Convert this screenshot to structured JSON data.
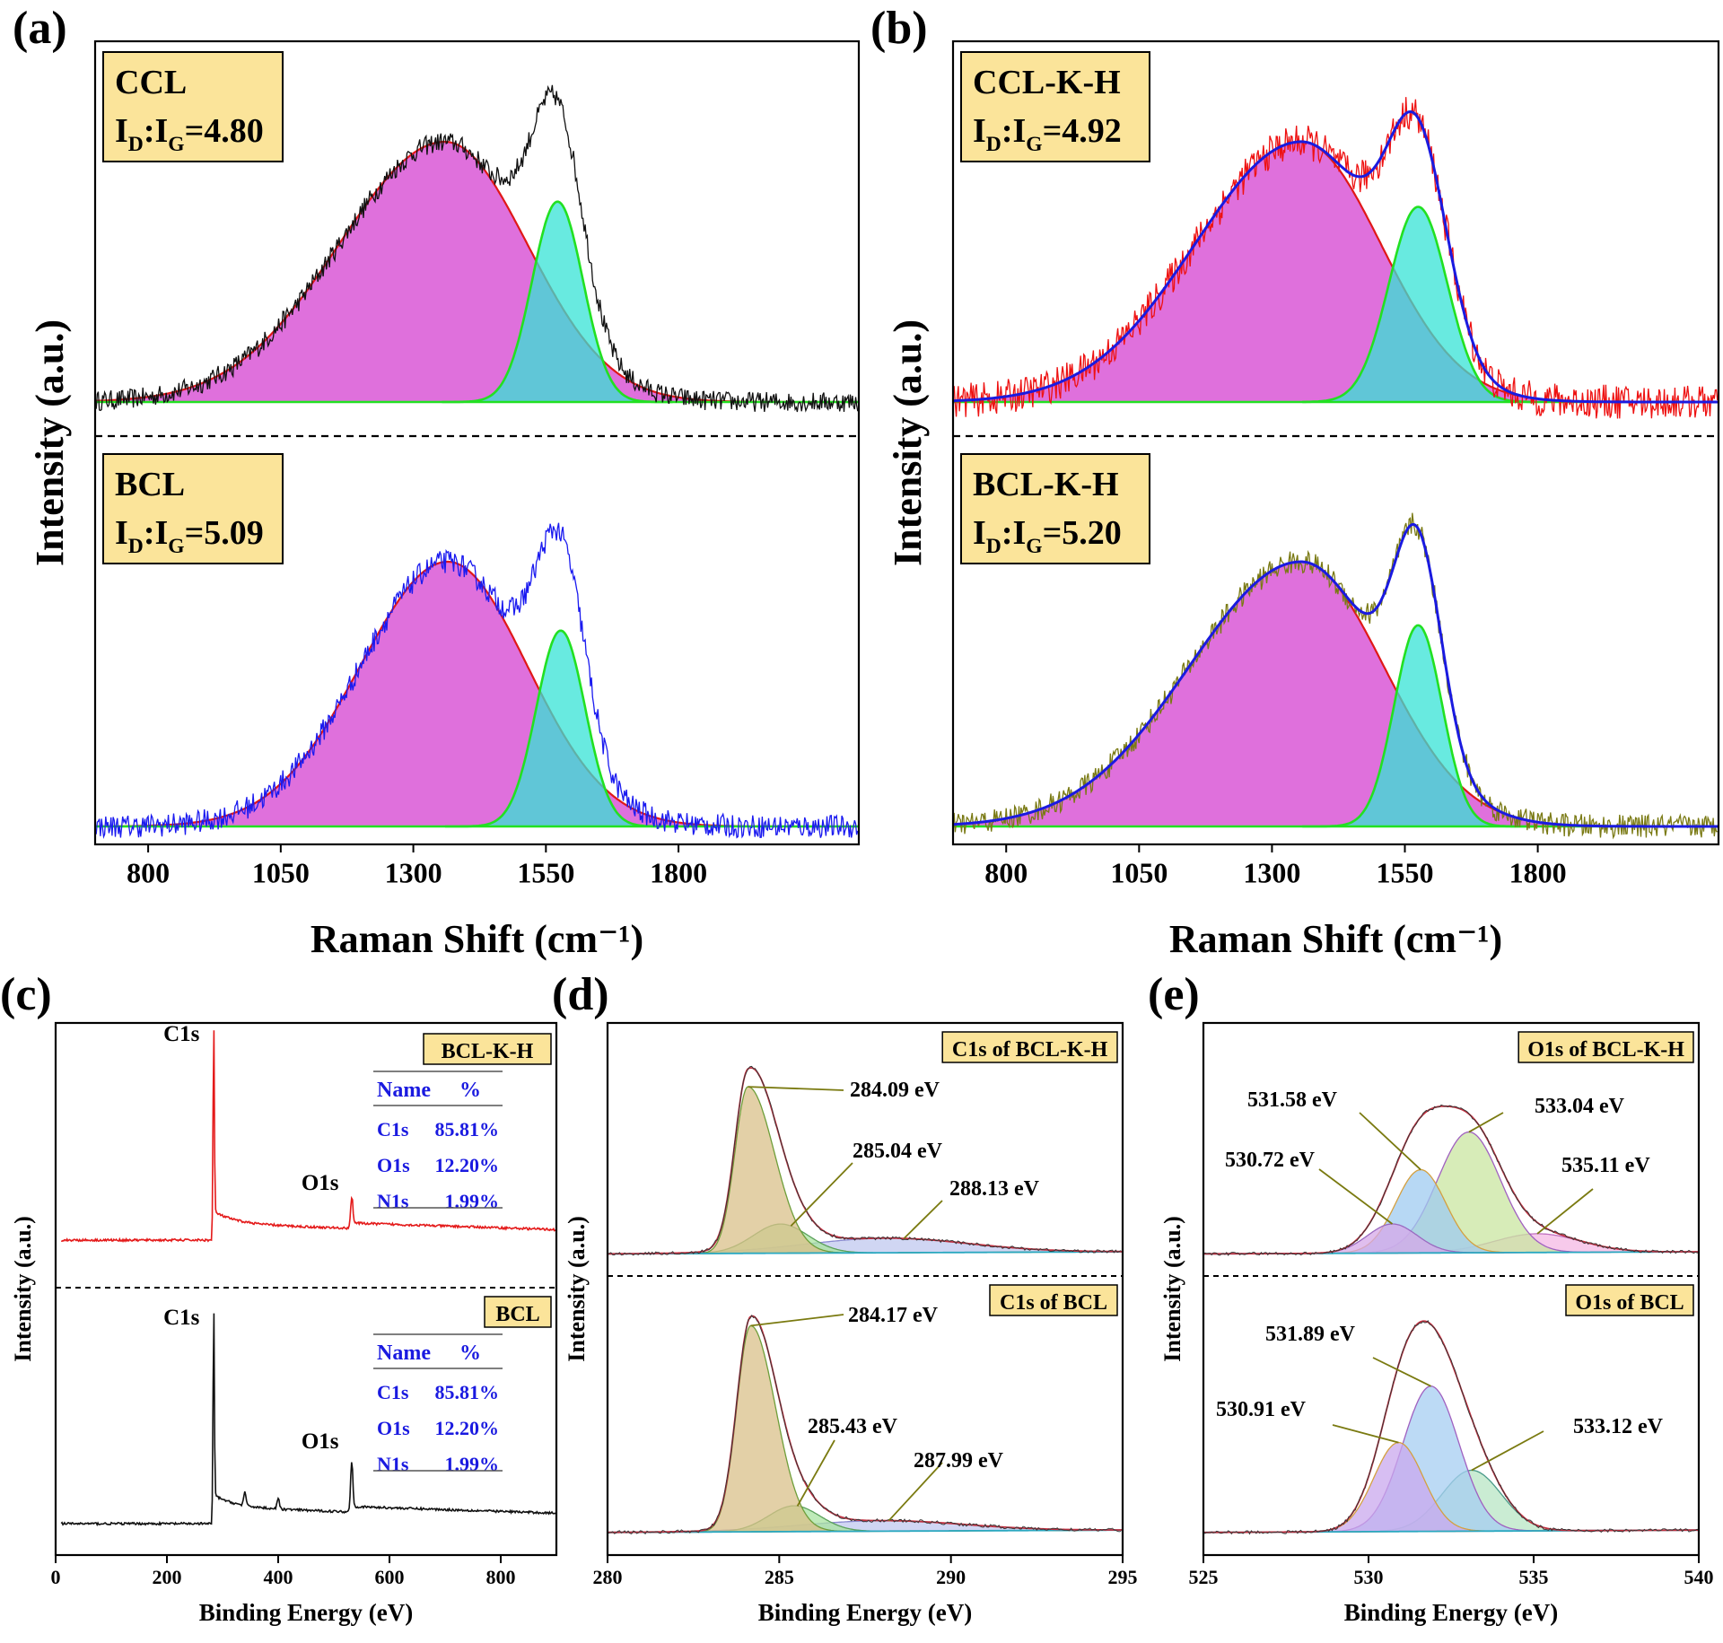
{
  "colors": {
    "d_fill": "#d957d6",
    "d_line": "#e01818",
    "g_fill": "#35e3d6",
    "g_line": "#22e022",
    "ccl": "#111111",
    "bcl": "#1a1af0",
    "cclkh": "#ee1111",
    "bclkh": "#7a7a14",
    "fit": "#1a1ae0",
    "badge_fill": "#fbe49a",
    "table_text": "#1a1ae0",
    "survey_bclkh": "#e41a1a",
    "survey_bcl": "#111111"
  },
  "chart_data": [
    {
      "type": "line",
      "panel_label": "(a)",
      "xlabel": "Raman Shift (cm⁻¹)",
      "ylabel": "Intensity (a.u.)",
      "xlim": [
        700,
        2140
      ],
      "xticks": [
        800,
        1050,
        1300,
        1550,
        1800
      ],
      "stacks": [
        {
          "name": "CCL",
          "ratio_label": "I_D:I_G=4.80",
          "line_color": "#111111",
          "fit": false,
          "D": {
            "center": 1360,
            "amp": 1.0,
            "sigma_left": 200,
            "sigma_right": 155
          },
          "G": {
            "center": 1572,
            "amp": 0.77,
            "sigma": 48
          },
          "noise": 0.035
        },
        {
          "name": "BCL",
          "ratio_label": "I_D:I_G=5.09",
          "line_color": "#1a1af0",
          "fit": false,
          "D": {
            "center": 1365,
            "amp": 1.0,
            "sigma_left": 165,
            "sigma_right": 150
          },
          "G": {
            "center": 1578,
            "amp": 0.74,
            "sigma": 46
          },
          "noise": 0.04
        }
      ]
    },
    {
      "type": "line",
      "panel_label": "(b)",
      "xlabel": "Raman Shift (cm⁻¹)",
      "ylabel": "Intensity (a.u.)",
      "xlim": [
        700,
        2140
      ],
      "xticks": [
        800,
        1050,
        1300,
        1550,
        1800
      ],
      "stacks": [
        {
          "name": "CCL-K-H",
          "ratio_label": "I_D:I_G=4.92",
          "line_color": "#ee1111",
          "fit": true,
          "D": {
            "center": 1355,
            "amp": 1.0,
            "sigma_left": 200,
            "sigma_right": 150
          },
          "G": {
            "center": 1575,
            "amp": 0.75,
            "sigma": 55
          },
          "noise": 0.06
        },
        {
          "name": "BCL-K-H",
          "ratio_label": "I_D:I_G=5.20",
          "line_color": "#7a7a14",
          "fit": true,
          "D": {
            "center": 1355,
            "amp": 1.0,
            "sigma_left": 210,
            "sigma_right": 155
          },
          "G": {
            "center": 1575,
            "amp": 0.76,
            "sigma": 45
          },
          "noise": 0.04
        }
      ]
    },
    {
      "type": "line",
      "panel_label": "(c)",
      "xlabel": "Binding Energy (eV)",
      "ylabel": "Intensity (a.u.)",
      "xlim": [
        0,
        900
      ],
      "xticks": [
        0,
        200,
        400,
        600,
        800
      ],
      "series": [
        {
          "name": "BCL-K-H",
          "color": "#e41a1a",
          "c1s_eV": 284,
          "o1s_eV": 532
        },
        {
          "name": "BCL",
          "color": "#111111",
          "c1s_eV": 284,
          "o1s_eV": 532
        }
      ],
      "peak_labels": [
        "C1s",
        "O1s"
      ],
      "composition_tables": [
        {
          "sample": "BCL-K-H",
          "header": [
            "Name",
            "%"
          ],
          "rows": [
            [
              "C1s",
              "85.81%"
            ],
            [
              "O1s",
              "12.20%"
            ],
            [
              "N1s",
              "1.99%"
            ]
          ]
        },
        {
          "sample": "BCL",
          "header": [
            "Name",
            "%"
          ],
          "rows": [
            [
              "C1s",
              "85.81%"
            ],
            [
              "O1s",
              "12.20%"
            ],
            [
              "N1s",
              "1.99%"
            ]
          ]
        }
      ]
    },
    {
      "type": "line",
      "panel_label": "(d)",
      "xlabel": "Binding Energy (eV)",
      "ylabel": "Intensity (a.u.)",
      "xlim": [
        280,
        295
      ],
      "xticks": [
        280,
        285,
        290,
        295
      ],
      "stacks": [
        {
          "title": "C1s of BCL-K-H",
          "peaks": [
            {
              "label": "284.09 eV",
              "center": 284.09,
              "amp": 0.8,
              "sigma": 0.45,
              "tail": 0.7,
              "fill": "#d9c08a",
              "edge": "#6e9e3a"
            },
            {
              "label": "285.04 eV",
              "center": 285.04,
              "amp": 0.14,
              "sigma": 0.8,
              "fill": "#a8e3a0",
              "edge": "#5aa05a"
            },
            {
              "label": "288.13 eV",
              "center": 288.13,
              "amp": 0.07,
              "sigma": 2.4,
              "fill": "#c0c8ef",
              "edge": "#8a8ad0"
            }
          ]
        },
        {
          "title": "C1s of BCL",
          "peaks": [
            {
              "label": "284.17 eV",
              "center": 284.17,
              "amp": 0.88,
              "sigma": 0.48,
              "tail": 0.5,
              "fill": "#d9c08a",
              "edge": "#6e9e3a"
            },
            {
              "label": "285.43 eV",
              "center": 285.43,
              "amp": 0.11,
              "sigma": 0.75,
              "fill": "#a8e3a0",
              "edge": "#5aa05a"
            },
            {
              "label": "287.99 eV",
              "center": 287.99,
              "amp": 0.045,
              "sigma": 2.4,
              "fill": "#c0c8ef",
              "edge": "#8a8ad0"
            }
          ]
        }
      ]
    },
    {
      "type": "line",
      "panel_label": "(e)",
      "xlabel": "Binding Energy (eV)",
      "ylabel": "Intensity (a.u.)",
      "xlim": [
        525,
        540
      ],
      "xticks": [
        525,
        530,
        535,
        540
      ],
      "stacks": [
        {
          "title": "O1s of BCL-K-H",
          "peaks": [
            {
              "label": "530.72 eV",
              "center": 530.72,
              "amp": 0.14,
              "sigma": 0.75,
              "fill": "#d6a8e8",
              "edge": "#9a6ac0"
            },
            {
              "label": "531.58 eV",
              "center": 531.58,
              "amp": 0.4,
              "sigma": 0.75,
              "fill": "#9fcbf0",
              "edge": "#d4a040"
            },
            {
              "label": "533.04 eV",
              "center": 533.04,
              "amp": 0.58,
              "sigma": 0.95,
              "fill": "#c9e6a0",
              "edge": "#a060c0"
            },
            {
              "label": "535.11 eV",
              "center": 535.11,
              "amp": 0.09,
              "sigma": 1.3,
              "fill": "#f4b8e4",
              "edge": "#c070c0"
            }
          ]
        },
        {
          "title": "O1s of BCL",
          "peaks": [
            {
              "label": "530.91 eV",
              "center": 530.91,
              "amp": 0.38,
              "sigma": 0.75,
              "fill": "#c9a8ee",
              "edge": "#d4a040"
            },
            {
              "label": "531.89 eV",
              "center": 531.89,
              "amp": 0.62,
              "sigma": 0.85,
              "fill": "#a6cdf2",
              "edge": "#a060c0"
            },
            {
              "label": "533.12 eV",
              "center": 533.12,
              "amp": 0.26,
              "sigma": 0.9,
              "fill": "#b8e6c4",
              "edge": "#4a9a8a"
            }
          ]
        }
      ]
    }
  ]
}
